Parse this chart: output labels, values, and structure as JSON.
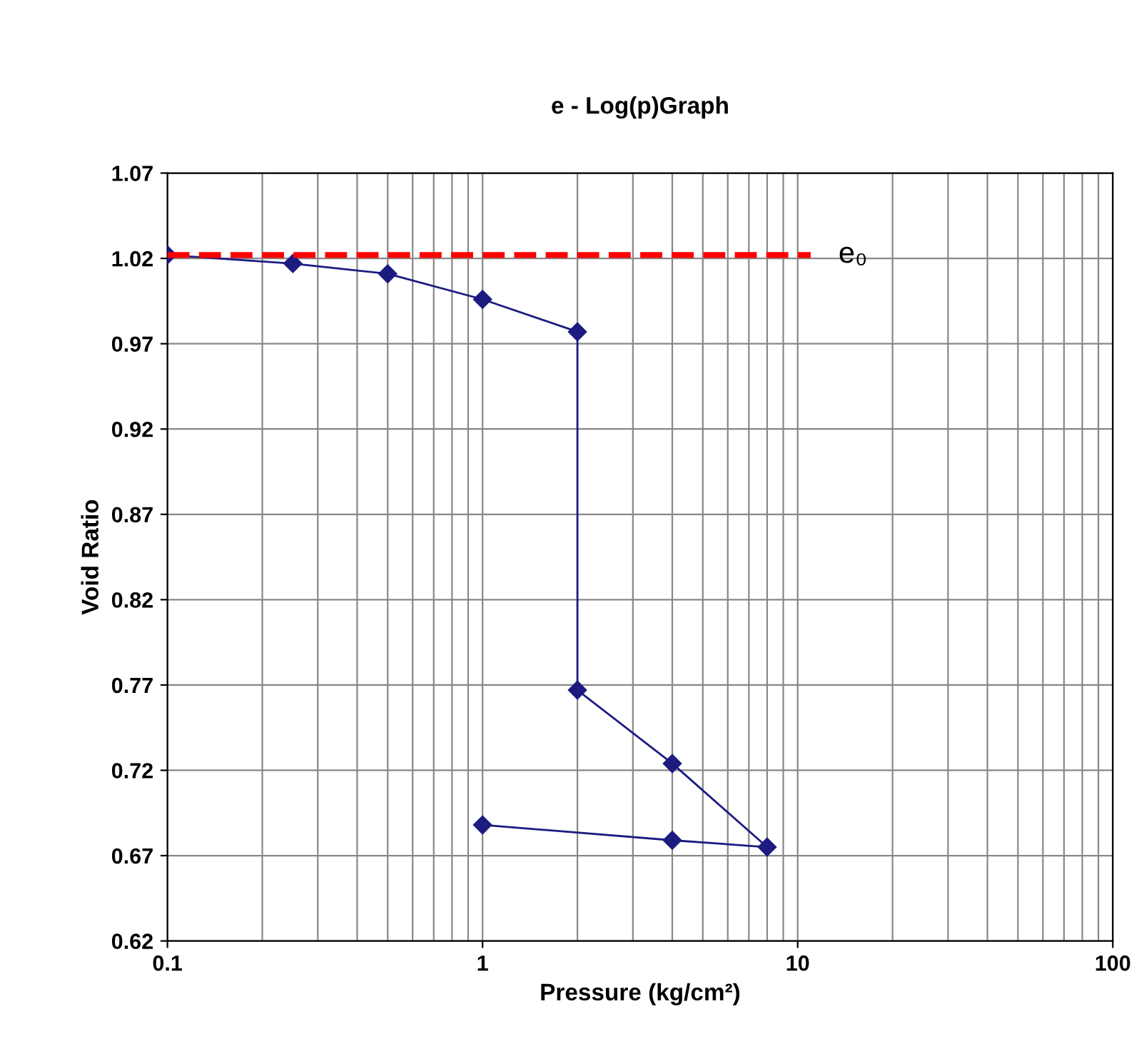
{
  "chart_data": {
    "type": "line",
    "title": "e - Log(p)Graph",
    "xlabel": "Pressure (kg/cm²)",
    "ylabel": "Void Ratio",
    "log": "x",
    "xlim": [
      0.1,
      100
    ],
    "xticks": [
      0.1,
      1,
      10,
      100
    ],
    "ylim": [
      0.62,
      1.07
    ],
    "yticks": [
      0.62,
      0.67,
      0.72,
      0.77,
      0.82,
      0.87,
      0.92,
      0.97,
      1.02,
      1.07
    ],
    "grid": true,
    "series": [
      {
        "color": "#1c1c80",
        "marker": "diamond",
        "line_style": "solid",
        "x": [
          0.1,
          0.25,
          0.5,
          1,
          2,
          2,
          4,
          8,
          4,
          1
        ],
        "values": [
          1.022,
          1.017,
          1.011,
          0.996,
          0.977,
          0.767,
          0.724,
          0.675,
          0.679,
          0.688
        ]
      },
      {
        "name": "e₀",
        "color": "#ff0000",
        "marker": "none",
        "line_style": "dashed",
        "x": [
          0.1,
          11
        ],
        "values": [
          1.022,
          1.022
        ]
      }
    ]
  }
}
